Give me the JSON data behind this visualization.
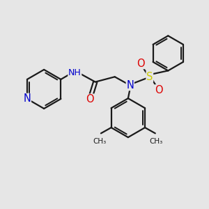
{
  "bg_color": "#e6e6e6",
  "line_color": "#1a1a1a",
  "line_width": 1.6,
  "atom_colors": {
    "N": "#0000cc",
    "O": "#dd0000",
    "S": "#cccc00",
    "C": "#1a1a1a"
  },
  "font_size": 9.5,
  "figsize": [
    3.0,
    3.0
  ],
  "dpi": 100,
  "xlim": [
    0,
    10
  ],
  "ylim": [
    0,
    10
  ]
}
